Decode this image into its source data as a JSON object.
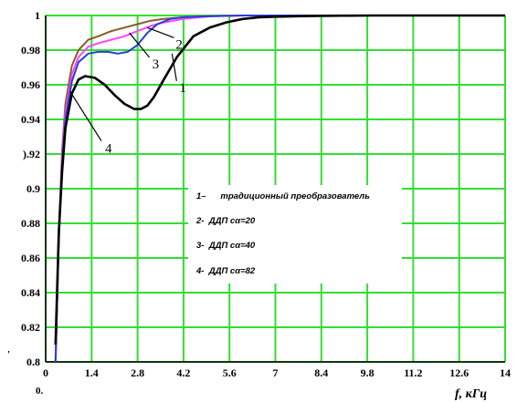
{
  "chart_data": {
    "type": "line",
    "xlabel": "f, кГц",
    "ylabel": "",
    "xlim": [
      0,
      14
    ],
    "ylim": [
      0.8,
      1
    ],
    "grid": true,
    "x_ticks": [
      "0",
      "1.4",
      "2.8",
      "4.2",
      "5.6",
      "7",
      "8.4",
      "9.8",
      "11.2",
      "12.6",
      "14"
    ],
    "y_ticks": [
      "0.8",
      "0.82",
      "0.84",
      "0.86",
      "0.88",
      "0.9",
      ").92",
      "0.94",
      "0.96",
      "0.98",
      "1"
    ],
    "corner_marks": [
      "'",
      "0."
    ],
    "grid_color": "#33dd33",
    "legend_position": "center-right",
    "legend": [
      "1–      традиционный преобразователь",
      "2-  ДДП сα=20",
      "3-  ДДП сα=40",
      "4-  ДДП сα=82"
    ],
    "series": [
      {
        "label": "1",
        "color": "#000000",
        "x": [
          0.3,
          0.4,
          0.5,
          0.6,
          0.8,
          1.0,
          1.2,
          1.5,
          1.8,
          2.1,
          2.4,
          2.7,
          2.9,
          3.1,
          3.3,
          3.6,
          4.0,
          4.5,
          5.0,
          5.5,
          6.0,
          6.5,
          7.0,
          7.5,
          8.0,
          9.0,
          10.0,
          14.0
        ],
        "y": [
          0.81,
          0.875,
          0.91,
          0.935,
          0.955,
          0.963,
          0.965,
          0.964,
          0.96,
          0.954,
          0.949,
          0.946,
          0.946,
          0.948,
          0.953,
          0.963,
          0.976,
          0.988,
          0.993,
          0.996,
          0.998,
          0.999,
          0.9993,
          0.9995,
          0.9997,
          0.9999,
          1.0,
          1.0
        ]
      },
      {
        "label": "2",
        "color": "#2a3cdc",
        "x": [
          0.3,
          0.4,
          0.5,
          0.6,
          0.8,
          1.0,
          1.3,
          1.6,
          1.9,
          2.2,
          2.5,
          2.8,
          3.1,
          3.4,
          3.8,
          4.2,
          5.0,
          6.0,
          7.0,
          14.0
        ],
        "y": [
          0.8,
          0.87,
          0.915,
          0.94,
          0.962,
          0.973,
          0.978,
          0.979,
          0.979,
          0.978,
          0.979,
          0.983,
          0.99,
          0.995,
          0.998,
          0.999,
          0.9995,
          1.0,
          1.0,
          1.0
        ]
      },
      {
        "label": "3",
        "color": "#ff44ff",
        "x": [
          0.3,
          0.4,
          0.5,
          0.6,
          0.8,
          1.0,
          1.3,
          1.6,
          2.0,
          2.4,
          2.8,
          3.2,
          3.6,
          4.2,
          5.0,
          6.0,
          7.0,
          14.0
        ],
        "y": [
          0.8,
          0.872,
          0.918,
          0.944,
          0.966,
          0.976,
          0.982,
          0.984,
          0.986,
          0.988,
          0.991,
          0.994,
          0.996,
          0.998,
          0.9995,
          1.0,
          1.0,
          1.0
        ]
      },
      {
        "label": "4",
        "color": "#8a5a2a",
        "x": [
          0.3,
          0.4,
          0.5,
          0.6,
          0.8,
          1.0,
          1.3,
          1.6,
          2.0,
          2.4,
          2.8,
          3.2,
          3.6,
          4.2,
          5.0,
          6.0,
          7.0,
          14.0
        ],
        "y": [
          0.8,
          0.874,
          0.922,
          0.949,
          0.971,
          0.98,
          0.986,
          0.988,
          0.991,
          0.993,
          0.995,
          0.997,
          0.998,
          0.999,
          0.9997,
          1.0,
          1.0,
          1.0
        ]
      }
    ],
    "annotations": [
      {
        "label": "1",
        "series": "1"
      },
      {
        "label": "2",
        "series": "2"
      },
      {
        "label": "3",
        "series": "3"
      },
      {
        "label": "4",
        "series": "4"
      }
    ]
  }
}
